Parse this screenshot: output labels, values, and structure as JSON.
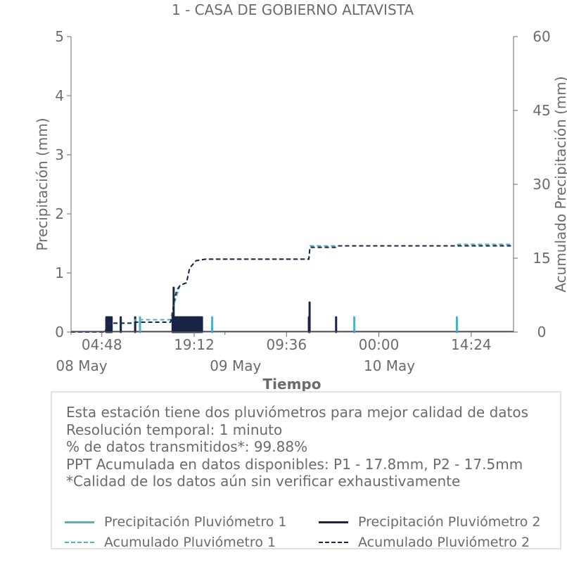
{
  "chart_data": {
    "type": "line",
    "title": "1 - CASA DE GOBIERNO ALTAVISTA",
    "xlabel": "Tiempo",
    "ylabel": "Precipitación (mm)",
    "y2label": "Acumulado Precipitación (mm)",
    "ylim": [
      0,
      5
    ],
    "y2lim": [
      0,
      60
    ],
    "yticks": [
      "0",
      "1",
      "2",
      "3",
      "4",
      "5"
    ],
    "y2ticks": [
      "0",
      "15",
      "30",
      "45",
      "60"
    ],
    "x_time_ticks": [
      "04:48",
      "19:12",
      "09:36",
      "00:00",
      "14:24"
    ],
    "x_date_ticks": [
      "08 May",
      "09 May",
      "10 May"
    ],
    "xlim": [
      "2024-05-08 00:00",
      "2024-05-10 21:00"
    ],
    "grid": false,
    "series": [
      {
        "name": "Precipitación Pluviómetro 1",
        "color": "#4fb0c1",
        "style": "bars",
        "axis": "left",
        "points": [
          [
            "2024-05-08 05:45",
            0.25
          ],
          [
            "2024-05-08 06:00",
            0.25
          ],
          [
            "2024-05-08 06:15",
            0.25
          ],
          [
            "2024-05-08 07:45",
            0.25
          ],
          [
            "2024-05-08 10:00",
            0.25
          ],
          [
            "2024-05-08 10:45",
            0.25
          ],
          [
            "2024-05-08 15:55",
            0.25
          ],
          [
            "2024-05-08 16:05",
            0.25
          ],
          [
            "2024-05-08 16:15",
            0.25
          ],
          [
            "2024-05-08 16:25",
            0.25
          ],
          [
            "2024-05-08 16:35",
            0.25
          ],
          [
            "2024-05-08 16:45",
            0.25
          ],
          [
            "2024-05-08 16:55",
            0.25
          ],
          [
            "2024-05-08 17:05",
            0.25
          ],
          [
            "2024-05-08 17:15",
            0.25
          ],
          [
            "2024-05-08 17:25",
            0.25
          ],
          [
            "2024-05-08 17:35",
            0.25
          ],
          [
            "2024-05-08 17:45",
            0.25
          ],
          [
            "2024-05-08 17:55",
            0.25
          ],
          [
            "2024-05-08 18:05",
            0.25
          ],
          [
            "2024-05-08 18:15",
            0.25
          ],
          [
            "2024-05-08 18:25",
            0.25
          ],
          [
            "2024-05-08 18:40",
            0.25
          ],
          [
            "2024-05-08 19:00",
            0.25
          ],
          [
            "2024-05-08 19:30",
            0.25
          ],
          [
            "2024-05-08 19:45",
            0.25
          ],
          [
            "2024-05-08 22:00",
            0.25
          ],
          [
            "2024-05-09 20:10",
            0.25
          ],
          [
            "2024-05-10 12:10",
            0.25
          ]
        ]
      },
      {
        "name": "Precipitación Pluviómetro 2",
        "color": "#1b2346",
        "style": "bars",
        "axis": "left",
        "points": [
          [
            "2024-05-08 05:30",
            0.25
          ],
          [
            "2024-05-08 05:40",
            0.25
          ],
          [
            "2024-05-08 05:50",
            0.25
          ],
          [
            "2024-05-08 06:00",
            0.25
          ],
          [
            "2024-05-08 06:10",
            0.25
          ],
          [
            "2024-05-08 06:20",
            0.25
          ],
          [
            "2024-05-08 07:45",
            0.25
          ],
          [
            "2024-05-08 10:00",
            0.25
          ],
          [
            "2024-05-08 15:50",
            0.25
          ],
          [
            "2024-05-08 16:00",
            0.75
          ],
          [
            "2024-05-08 16:10",
            0.25
          ],
          [
            "2024-05-08 16:20",
            0.25
          ],
          [
            "2024-05-08 16:30",
            0.25
          ],
          [
            "2024-05-08 16:40",
            0.25
          ],
          [
            "2024-05-08 16:50",
            0.25
          ],
          [
            "2024-05-08 17:00",
            0.25
          ],
          [
            "2024-05-08 17:10",
            0.25
          ],
          [
            "2024-05-08 17:20",
            0.25
          ],
          [
            "2024-05-08 17:30",
            0.25
          ],
          [
            "2024-05-08 17:40",
            0.25
          ],
          [
            "2024-05-08 17:50",
            0.25
          ],
          [
            "2024-05-08 18:00",
            0.25
          ],
          [
            "2024-05-08 18:10",
            0.25
          ],
          [
            "2024-05-08 18:20",
            0.25
          ],
          [
            "2024-05-08 18:30",
            0.25
          ],
          [
            "2024-05-08 18:40",
            0.25
          ],
          [
            "2024-05-08 18:50",
            0.25
          ],
          [
            "2024-05-08 19:00",
            0.25
          ],
          [
            "2024-05-08 19:10",
            0.25
          ],
          [
            "2024-05-08 19:20",
            0.25
          ],
          [
            "2024-05-08 19:30",
            0.25
          ],
          [
            "2024-05-08 19:40",
            0.25
          ],
          [
            "2024-05-08 19:50",
            0.25
          ],
          [
            "2024-05-08 20:00",
            0.25
          ],
          [
            "2024-05-08 20:10",
            0.25
          ],
          [
            "2024-05-08 20:25",
            0.25
          ],
          [
            "2024-05-09 13:05",
            0.25
          ],
          [
            "2024-05-09 13:12",
            0.5
          ],
          [
            "2024-05-09 17:20",
            0.25
          ]
        ]
      },
      {
        "name": "Acumulado Pluviómetro 1",
        "color": "#4fb0c1",
        "style": "dashed",
        "axis": "right",
        "points": [
          [
            "2024-05-08 00:00",
            0
          ],
          [
            "2024-05-08 05:20",
            0
          ],
          [
            "2024-05-08 05:40",
            1.8
          ],
          [
            "2024-05-08 09:50",
            1.8
          ],
          [
            "2024-05-08 10:00",
            2.5
          ],
          [
            "2024-05-08 15:30",
            2.5
          ],
          [
            "2024-05-08 16:00",
            5.5
          ],
          [
            "2024-05-08 16:30",
            7.5
          ],
          [
            "2024-05-08 17:00",
            9.5
          ],
          [
            "2024-05-08 18:00",
            10
          ],
          [
            "2024-05-08 18:30",
            13
          ],
          [
            "2024-05-08 19:30",
            14.5
          ],
          [
            "2024-05-08 21:00",
            14.8
          ],
          [
            "2024-05-09 13:05",
            14.8
          ],
          [
            "2024-05-09 13:15",
            17.5
          ],
          [
            "2024-05-10 12:10",
            17.5
          ],
          [
            "2024-05-10 12:20",
            17.8
          ],
          [
            "2024-05-10 21:00",
            17.8
          ]
        ]
      },
      {
        "name": "Acumulado Pluviómetro 2",
        "color": "#1b2346",
        "style": "dashed",
        "axis": "right",
        "points": [
          [
            "2024-05-08 00:00",
            0
          ],
          [
            "2024-05-08 05:20",
            0
          ],
          [
            "2024-05-08 05:40",
            1.8
          ],
          [
            "2024-05-08 09:50",
            1.8
          ],
          [
            "2024-05-08 10:00",
            2.0
          ],
          [
            "2024-05-08 15:30",
            2.0
          ],
          [
            "2024-05-08 15:50",
            3.5
          ],
          [
            "2024-05-08 16:00",
            6.0
          ],
          [
            "2024-05-08 16:30",
            8.5
          ],
          [
            "2024-05-08 17:00",
            9.5
          ],
          [
            "2024-05-08 18:00",
            10
          ],
          [
            "2024-05-08 18:30",
            13
          ],
          [
            "2024-05-08 19:30",
            14.5
          ],
          [
            "2024-05-08 21:00",
            14.8
          ],
          [
            "2024-05-09 13:05",
            14.8
          ],
          [
            "2024-05-09 13:15",
            17.2
          ],
          [
            "2024-05-09 17:20",
            17.2
          ],
          [
            "2024-05-09 17:30",
            17.5
          ],
          [
            "2024-05-10 21:00",
            17.5
          ]
        ]
      }
    ]
  },
  "info": {
    "lines": [
      "Esta estación tiene dos pluviómetros para mejor calidad de datos",
      "Resolución temporal: 1 minuto",
      "% de datos transmitidos*: 99.88%",
      "PPT Acumulada en datos disponibles: P1 - 17.8mm, P2 - 17.5mm",
      "*Calidad de los datos aún sin verificar exhaustivamente"
    ]
  },
  "legend": {
    "items": [
      {
        "label": "Precipitación Pluviómetro 1",
        "color": "#4fb0c1",
        "style": "solid"
      },
      {
        "label": "Precipitación Pluviómetro 2",
        "color": "#1b2346",
        "style": "solid"
      },
      {
        "label": "Acumulado Pluviómetro 1",
        "color": "#4fb0c1",
        "style": "dashed"
      },
      {
        "label": "Acumulado Pluviómetro 2",
        "color": "#1b2346",
        "style": "dashed"
      }
    ]
  }
}
